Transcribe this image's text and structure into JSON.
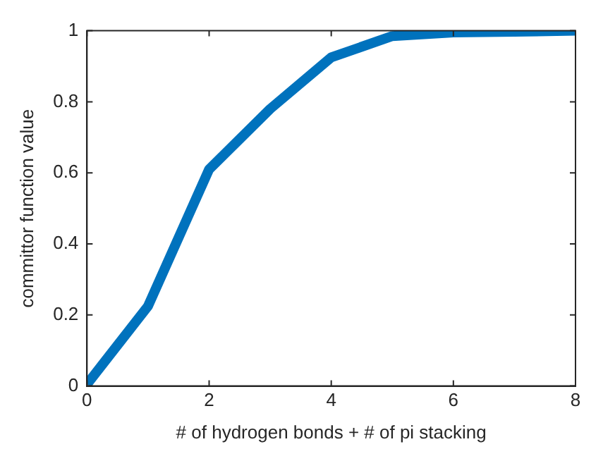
{
  "chart_data": {
    "type": "line",
    "xlabel": "# of hydrogen bonds + # of pi stacking",
    "ylabel": "committor function value",
    "x": [
      0,
      1,
      2,
      3,
      4,
      5,
      6,
      7,
      8
    ],
    "series": [
      {
        "color": "#0072bd",
        "values": [
          0.005,
          0.225,
          0.61,
          0.78,
          0.925,
          0.985,
          0.995,
          0.997,
          1.0
        ]
      }
    ],
    "xlim": [
      0,
      8
    ],
    "xticks": [
      0,
      2,
      4,
      6,
      8
    ],
    "ylim": [
      0,
      1
    ],
    "yticks": [
      0,
      0.2,
      0.4,
      0.6,
      0.8,
      1
    ],
    "grid": false,
    "legend": false,
    "marker": "none",
    "line_style": "solid"
  }
}
